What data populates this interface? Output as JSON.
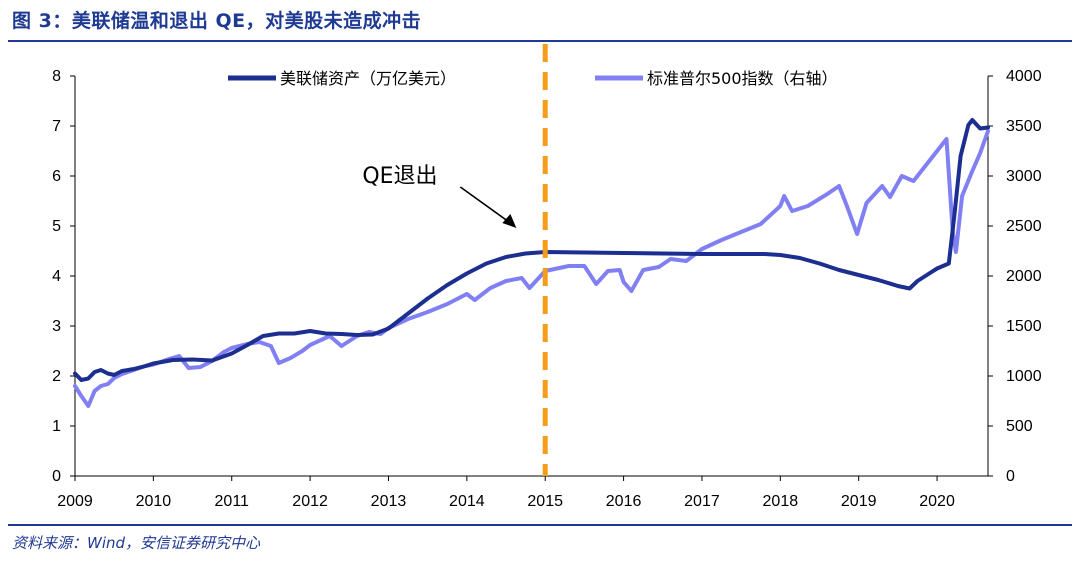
{
  "figure": {
    "title": "图 3：美联储温和退出 QE，对美股未造成冲击",
    "source": "资料来源：Wind，安信证券研究中心"
  },
  "colors": {
    "fed": "#1c2e8f",
    "spx": "#8080f4",
    "marker": "#f59c1a",
    "accent": "#1f3a93"
  },
  "chart_data": {
    "type": "line",
    "x_ticks": [
      "2009",
      "2010",
      "2011",
      "2012",
      "2013",
      "2014",
      "2015",
      "2016",
      "2017",
      "2018",
      "2019",
      "2020"
    ],
    "xlim": [
      2009,
      2020.65
    ],
    "y_left": {
      "ticks": [
        "0",
        "1",
        "2",
        "3",
        "4",
        "5",
        "6",
        "7",
        "8"
      ],
      "ylim": [
        0,
        8
      ]
    },
    "y_right": {
      "ticks": [
        "0",
        "500",
        "1000",
        "1500",
        "2000",
        "2500",
        "3000",
        "3500",
        "4000"
      ],
      "ylim": [
        0,
        4000
      ]
    },
    "legend_placement": "top",
    "series": [
      {
        "name": "美联储资产（万亿美元）",
        "axis": "left",
        "points": [
          [
            2009.0,
            2.05
          ],
          [
            2009.08,
            1.92
          ],
          [
            2009.17,
            1.95
          ],
          [
            2009.25,
            2.08
          ],
          [
            2009.33,
            2.12
          ],
          [
            2009.42,
            2.05
          ],
          [
            2009.5,
            2.02
          ],
          [
            2009.6,
            2.1
          ],
          [
            2009.75,
            2.14
          ],
          [
            2009.9,
            2.2
          ],
          [
            2010.0,
            2.25
          ],
          [
            2010.25,
            2.32
          ],
          [
            2010.5,
            2.33
          ],
          [
            2010.75,
            2.31
          ],
          [
            2011.0,
            2.45
          ],
          [
            2011.2,
            2.62
          ],
          [
            2011.4,
            2.8
          ],
          [
            2011.6,
            2.85
          ],
          [
            2011.8,
            2.85
          ],
          [
            2012.0,
            2.9
          ],
          [
            2012.2,
            2.85
          ],
          [
            2012.4,
            2.84
          ],
          [
            2012.6,
            2.82
          ],
          [
            2012.8,
            2.83
          ],
          [
            2013.0,
            2.95
          ],
          [
            2013.25,
            3.25
          ],
          [
            2013.5,
            3.55
          ],
          [
            2013.75,
            3.82
          ],
          [
            2014.0,
            4.05
          ],
          [
            2014.25,
            4.25
          ],
          [
            2014.5,
            4.38
          ],
          [
            2014.75,
            4.45
          ],
          [
            2015.0,
            4.48
          ],
          [
            2015.5,
            4.47
          ],
          [
            2016.0,
            4.46
          ],
          [
            2016.5,
            4.45
          ],
          [
            2017.0,
            4.44
          ],
          [
            2017.5,
            4.44
          ],
          [
            2017.8,
            4.44
          ],
          [
            2018.0,
            4.42
          ],
          [
            2018.25,
            4.36
          ],
          [
            2018.5,
            4.25
          ],
          [
            2018.75,
            4.12
          ],
          [
            2019.0,
            4.02
          ],
          [
            2019.25,
            3.92
          ],
          [
            2019.5,
            3.8
          ],
          [
            2019.65,
            3.75
          ],
          [
            2019.75,
            3.9
          ],
          [
            2019.9,
            4.05
          ],
          [
            2020.0,
            4.15
          ],
          [
            2020.15,
            4.25
          ],
          [
            2020.22,
            5.2
          ],
          [
            2020.3,
            6.4
          ],
          [
            2020.4,
            7.02
          ],
          [
            2020.45,
            7.12
          ],
          [
            2020.55,
            6.95
          ],
          [
            2020.65,
            6.97
          ]
        ]
      },
      {
        "name": "标准普尔500指数（右轴）",
        "axis": "right",
        "points": [
          [
            2009.0,
            900
          ],
          [
            2009.08,
            800
          ],
          [
            2009.17,
            700
          ],
          [
            2009.25,
            850
          ],
          [
            2009.33,
            900
          ],
          [
            2009.42,
            920
          ],
          [
            2009.5,
            980
          ],
          [
            2009.6,
            1020
          ],
          [
            2009.75,
            1060
          ],
          [
            2009.9,
            1100
          ],
          [
            2010.0,
            1115
          ],
          [
            2010.2,
            1170
          ],
          [
            2010.33,
            1200
          ],
          [
            2010.45,
            1080
          ],
          [
            2010.6,
            1090
          ],
          [
            2010.75,
            1150
          ],
          [
            2010.9,
            1240
          ],
          [
            2011.0,
            1280
          ],
          [
            2011.2,
            1320
          ],
          [
            2011.35,
            1340
          ],
          [
            2011.5,
            1300
          ],
          [
            2011.6,
            1130
          ],
          [
            2011.75,
            1180
          ],
          [
            2011.9,
            1250
          ],
          [
            2012.0,
            1310
          ],
          [
            2012.25,
            1400
          ],
          [
            2012.4,
            1300
          ],
          [
            2012.6,
            1400
          ],
          [
            2012.75,
            1440
          ],
          [
            2012.9,
            1420
          ],
          [
            2013.0,
            1480
          ],
          [
            2013.25,
            1570
          ],
          [
            2013.5,
            1640
          ],
          [
            2013.75,
            1720
          ],
          [
            2014.0,
            1820
          ],
          [
            2014.1,
            1760
          ],
          [
            2014.3,
            1880
          ],
          [
            2014.5,
            1950
          ],
          [
            2014.7,
            1980
          ],
          [
            2014.8,
            1880
          ],
          [
            2015.0,
            2050
          ],
          [
            2015.3,
            2100
          ],
          [
            2015.5,
            2100
          ],
          [
            2015.65,
            1920
          ],
          [
            2015.8,
            2050
          ],
          [
            2015.95,
            2060
          ],
          [
            2016.0,
            1940
          ],
          [
            2016.1,
            1850
          ],
          [
            2016.25,
            2060
          ],
          [
            2016.45,
            2090
          ],
          [
            2016.6,
            2170
          ],
          [
            2016.8,
            2150
          ],
          [
            2017.0,
            2270
          ],
          [
            2017.25,
            2360
          ],
          [
            2017.5,
            2440
          ],
          [
            2017.75,
            2520
          ],
          [
            2018.0,
            2700
          ],
          [
            2018.05,
            2800
          ],
          [
            2018.15,
            2650
          ],
          [
            2018.35,
            2700
          ],
          [
            2018.6,
            2820
          ],
          [
            2018.75,
            2900
          ],
          [
            2018.85,
            2700
          ],
          [
            2018.98,
            2420
          ],
          [
            2019.1,
            2730
          ],
          [
            2019.3,
            2900
          ],
          [
            2019.4,
            2790
          ],
          [
            2019.55,
            3000
          ],
          [
            2019.7,
            2950
          ],
          [
            2019.85,
            3100
          ],
          [
            2020.0,
            3250
          ],
          [
            2020.12,
            3370
          ],
          [
            2020.2,
            2450
          ],
          [
            2020.24,
            2240
          ],
          [
            2020.32,
            2800
          ],
          [
            2020.45,
            3050
          ],
          [
            2020.55,
            3230
          ],
          [
            2020.65,
            3450
          ]
        ]
      }
    ],
    "annotations": [
      {
        "text": "QE退出",
        "x": 2014.3,
        "y": 5.5
      }
    ],
    "marker_line_x": 2015.0
  }
}
